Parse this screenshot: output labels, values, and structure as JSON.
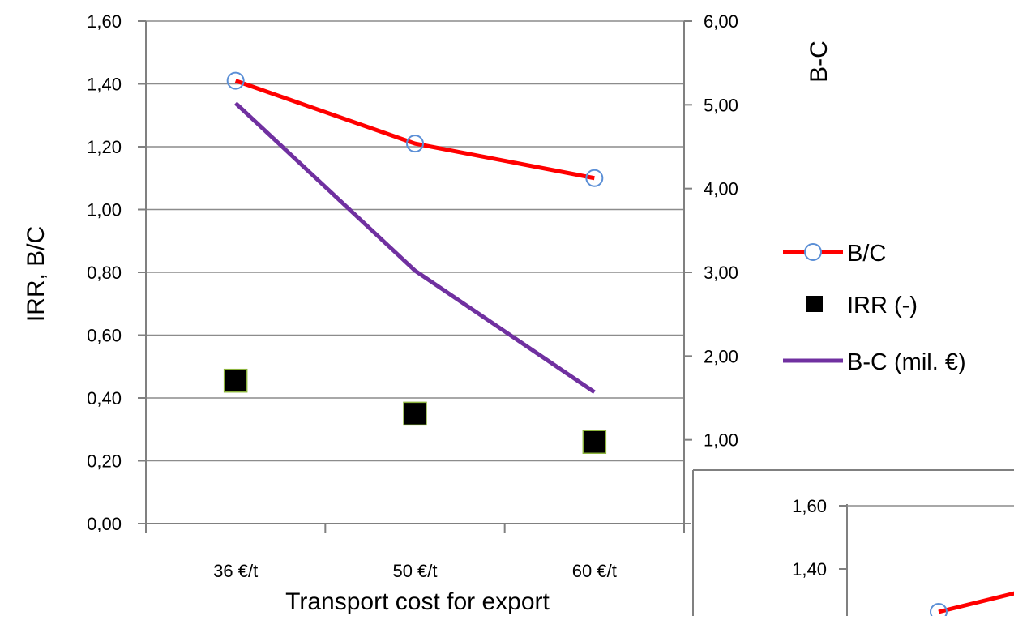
{
  "chart_data": [
    {
      "type": "line",
      "categories": [
        "36 €/t",
        "50 €/t",
        "60 €/t"
      ],
      "xlabel": "Transport cost for export",
      "ylabel_left": "IRR,  B/C",
      "ylabel_right": "B-C",
      "ylim_left": [
        0,
        1.6
      ],
      "ylim_right": [
        0,
        6
      ],
      "yticks_left": [
        "0,00",
        "0,20",
        "0,40",
        "0,60",
        "0,80",
        "1,00",
        "1,20",
        "1,40",
        "1,60"
      ],
      "yticks_right": [
        "1,00",
        "2,00",
        "3,00",
        "4,00",
        "5,00",
        "6,00"
      ],
      "grid": true,
      "legend_position": "right",
      "series": [
        {
          "name": "B/C",
          "axis": "left",
          "style": "line-circle",
          "color": "#ff0000",
          "marker_color": "#5b8fd6",
          "values": [
            1.41,
            1.21,
            1.1
          ]
        },
        {
          "name": "IRR (-)",
          "axis": "left",
          "style": "square-marker",
          "color": "#000000",
          "marker_edge": "#8db43e",
          "values": [
            0.455,
            0.35,
            0.26
          ]
        },
        {
          "name": "B-C (mil. €)",
          "axis": "right",
          "style": "line",
          "color": "#7030a0",
          "values": [
            5.02,
            3.02,
            1.57
          ]
        }
      ]
    },
    {
      "type": "line",
      "partial": true,
      "ylim": [
        0,
        1.6
      ],
      "yticks": [
        "1,40",
        "1,60"
      ],
      "series": [
        {
          "name": "B/C",
          "color": "#ff0000",
          "marker_color": "#5b8fd6",
          "values": [
            1.41
          ]
        }
      ]
    }
  ]
}
